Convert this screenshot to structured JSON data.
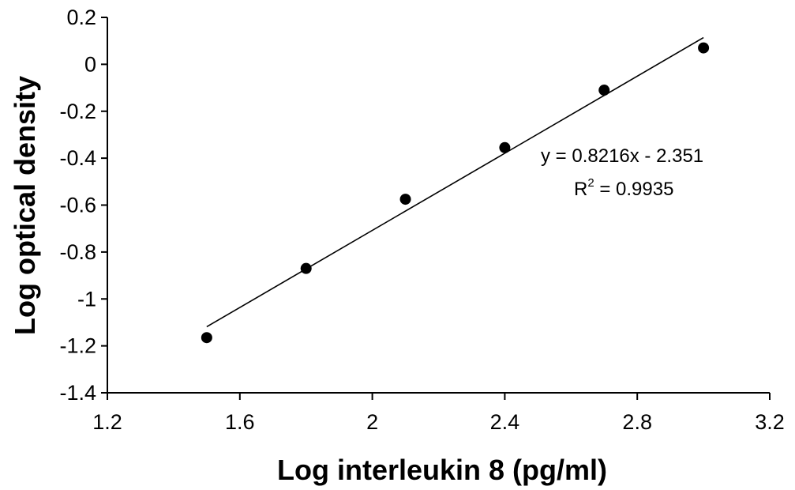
{
  "chart_data": {
    "type": "scatter",
    "title": "",
    "xlabel": "Log interleukin 8 (pg/ml)",
    "ylabel": "Log optical density",
    "xlim": [
      1.2,
      3.2
    ],
    "ylim": [
      -1.4,
      0.2
    ],
    "xticks": [
      1.2,
      1.6,
      2.0,
      2.4,
      2.8,
      3.2
    ],
    "xtick_labels": [
      "1.2",
      "1.6",
      "2",
      "2.4",
      "2.8",
      "3.2"
    ],
    "yticks": [
      0.2,
      0.0,
      -0.2,
      -0.4,
      -0.6,
      -0.8,
      -1.0,
      -1.2,
      -1.4
    ],
    "ytick_labels": [
      "0.2",
      "0",
      "-0.2",
      "-0.4",
      "-0.6",
      "-0.8",
      "-1",
      "-1.2",
      "-1.4"
    ],
    "grid": false,
    "series": [
      {
        "x": [
          1.5,
          1.8,
          2.1,
          2.4,
          2.7,
          3.0
        ],
        "y": [
          -1.165,
          -0.87,
          -0.575,
          -0.355,
          -0.11,
          0.07
        ],
        "color": "#000000"
      }
    ],
    "trendline": {
      "slope": 0.8216,
      "intercept": -2.351,
      "x_range": [
        1.5,
        3.0
      ],
      "color": "#000000"
    },
    "annotations": {
      "equation": "y = 0.8216x - 2.351",
      "r_squared_prefix": "R",
      "r_squared_exponent": "2",
      "r_squared_value": " = 0.9935"
    }
  }
}
